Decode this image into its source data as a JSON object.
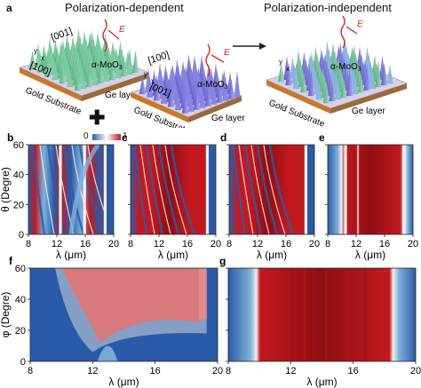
{
  "panel_a": {
    "letter": "a",
    "title_left": "Polarization-dependent",
    "title_right": "Polarization-independent",
    "plus_sign": "✚",
    "arrow": "⟶",
    "left_sample": {
      "label_crystal": "[001]",
      "label_crystal2": "[100]",
      "material_prefix": "α-MoO",
      "material_sub": "3",
      "substrate_label": "Gold Substrate",
      "ge_label": "Ge layer",
      "axis_y": "y",
      "axis_x": "x",
      "field_label": "E"
    },
    "middle_sample": {
      "label_crystal": "[100]",
      "label_crystal2": "[001]",
      "material_prefix": "α-MoO",
      "material_sub": "3",
      "substrate_label": "Gold Substrate",
      "ge_label": "Ge layer",
      "axis_y": "y",
      "axis_x": "x",
      "field_label": "E"
    },
    "right_sample": {
      "material_prefix": "α-MoO",
      "material_sub": "3",
      "substrate_label": "Gold Substrate",
      "ge_label": "Ge layer",
      "axis_y": "y",
      "axis_x": "x",
      "field_label": "E"
    },
    "colors": {
      "green_cone": "#7ccfa4",
      "blue_cone": "#8a86e6",
      "mixed_cone": "#8eb7e0",
      "substrate": "#c7b3c6",
      "gold_edge": "#c8782a"
    }
  },
  "colorbar": {
    "min_label": "0",
    "max_label": "1",
    "colors": [
      "#2a5fb0",
      "#ffffff",
      "#c8161e"
    ]
  },
  "chart_data": [
    {
      "panel": "b",
      "type": "heatmap",
      "xlabel": "λ (μm)",
      "ylabel": "θ (Degre)",
      "xlim": [
        8,
        20
      ],
      "ylim": [
        0,
        60
      ],
      "xticks": [
        "8",
        "12",
        "16",
        "20"
      ],
      "yticks": [
        "0",
        "20",
        "40",
        "60"
      ]
    },
    {
      "panel": "c",
      "type": "heatmap",
      "xlabel": "λ (μm)",
      "xlim": [
        8,
        20
      ],
      "ylim": [
        0,
        60
      ],
      "xticks": [
        "8",
        "12",
        "16",
        "20"
      ]
    },
    {
      "panel": "d",
      "type": "heatmap",
      "xlabel": "λ (μm)",
      "xlim": [
        8,
        20
      ],
      "ylim": [
        0,
        60
      ],
      "xticks": [
        "8",
        "12",
        "16",
        "20"
      ]
    },
    {
      "panel": "e",
      "type": "heatmap",
      "xlabel": "λ (μm)",
      "xlim": [
        8,
        20
      ],
      "ylim": [
        0,
        60
      ],
      "xticks": [
        "8",
        "12",
        "16",
        "20"
      ]
    },
    {
      "panel": "f",
      "type": "heatmap",
      "xlabel": "λ (μm)",
      "ylabel": "φ (Degre)",
      "xlim": [
        8,
        20
      ],
      "ylim": [
        0,
        60
      ],
      "xticks": [
        "8",
        "12",
        "16",
        "20"
      ],
      "yticks": [
        "0",
        "20",
        "40",
        "60"
      ]
    },
    {
      "panel": "g",
      "type": "heatmap",
      "xlabel": "λ (μm)",
      "xlim": [
        8,
        20
      ],
      "ylim": [
        0,
        60
      ],
      "xticks": [
        "8",
        "12",
        "16",
        "20"
      ]
    }
  ]
}
